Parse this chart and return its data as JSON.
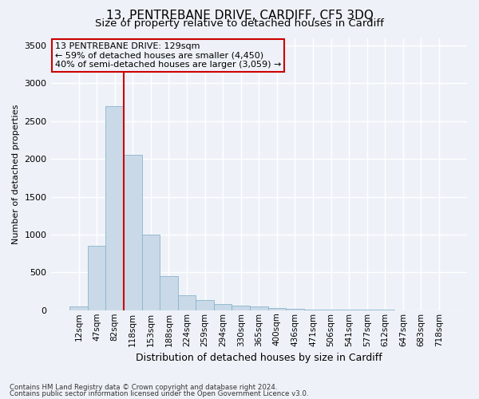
{
  "title": "13, PENTREBANE DRIVE, CARDIFF, CF5 3DQ",
  "subtitle": "Size of property relative to detached houses in Cardiff",
  "xlabel": "Distribution of detached houses by size in Cardiff",
  "ylabel": "Number of detached properties",
  "footnote1": "Contains HM Land Registry data © Crown copyright and database right 2024.",
  "footnote2": "Contains public sector information licensed under the Open Government Licence v3.0.",
  "annotation_line1": "13 PENTREBANE DRIVE: 129sqm",
  "annotation_line2": "← 59% of detached houses are smaller (4,450)",
  "annotation_line3": "40% of semi-detached houses are larger (3,059) →",
  "categories": [
    "12sqm",
    "47sqm",
    "82sqm",
    "118sqm",
    "153sqm",
    "188sqm",
    "224sqm",
    "259sqm",
    "294sqm",
    "330sqm",
    "365sqm",
    "400sqm",
    "436sqm",
    "471sqm",
    "506sqm",
    "541sqm",
    "577sqm",
    "612sqm",
    "647sqm",
    "683sqm",
    "718sqm"
  ],
  "values": [
    50,
    850,
    2700,
    2050,
    1000,
    450,
    200,
    130,
    80,
    60,
    50,
    30,
    20,
    10,
    8,
    5,
    4,
    3,
    2,
    2,
    1
  ],
  "bar_color": "#c9d9e8",
  "bar_edgecolor": "#8ab4cc",
  "vline_color": "#cc0000",
  "box_color": "#cc0000",
  "ylim": [
    0,
    3600
  ],
  "yticks": [
    0,
    500,
    1000,
    1500,
    2000,
    2500,
    3000,
    3500
  ],
  "bg_color": "#eef2f8",
  "grid_color": "#ffffff",
  "title_fontsize": 11,
  "subtitle_fontsize": 9.5,
  "tick_fontsize": 7.5,
  "annotation_fontsize": 8.0,
  "ylabel_fontsize": 8.0,
  "xlabel_fontsize": 9.0
}
